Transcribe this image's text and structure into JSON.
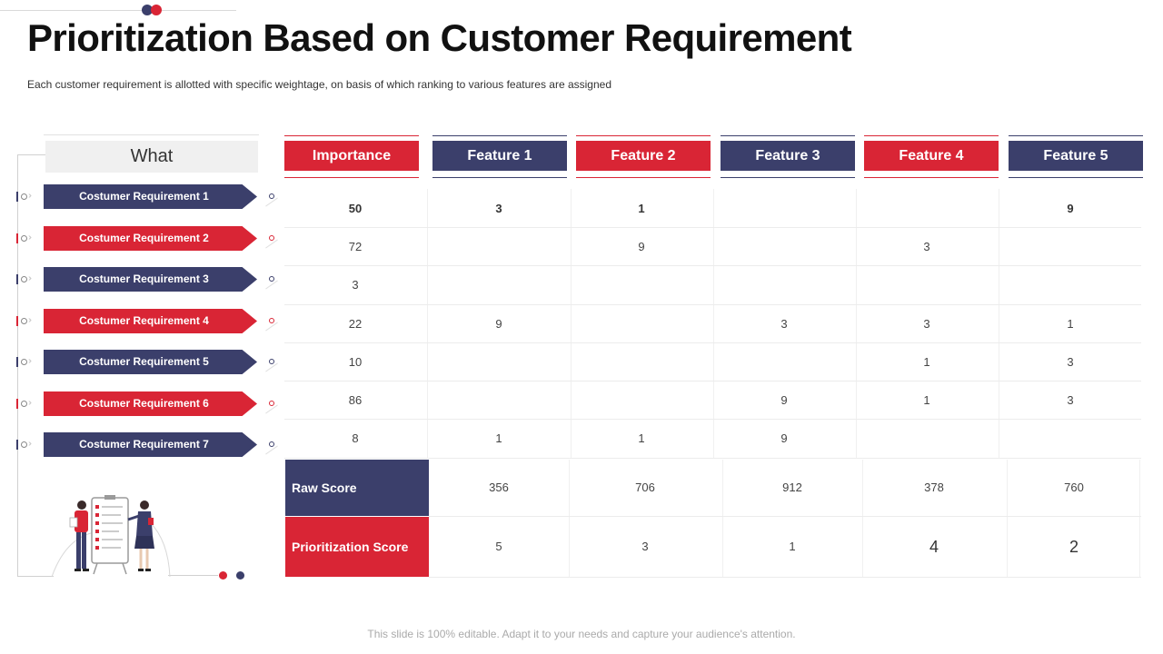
{
  "colors": {
    "red": "#d92535",
    "navy": "#3b3f6b"
  },
  "title": "Prioritization Based on Customer Requirement",
  "subtitle": "Each customer requirement  is allotted with specific weightage, on basis of which ranking to various  features are assigned",
  "what_header": "What",
  "requirements": [
    {
      "label": "Costumer Requirement 1",
      "color": "navy"
    },
    {
      "label": "Costumer Requirement 2",
      "color": "red"
    },
    {
      "label": "Costumer Requirement 3",
      "color": "navy"
    },
    {
      "label": "Costumer Requirement 4",
      "color": "red"
    },
    {
      "label": "Costumer Requirement 5",
      "color": "navy"
    },
    {
      "label": "Costumer Requirement 6",
      "color": "red"
    },
    {
      "label": "Costumer Requirement 7",
      "color": "navy"
    }
  ],
  "columns": [
    {
      "label": "Importance",
      "color": "red"
    },
    {
      "label": "Feature 1",
      "color": "navy"
    },
    {
      "label": "Feature 2",
      "color": "red"
    },
    {
      "label": "Feature 3",
      "color": "navy"
    },
    {
      "label": "Feature 4",
      "color": "red"
    },
    {
      "label": "Feature 5",
      "color": "navy"
    }
  ],
  "rows": [
    [
      "50",
      "3",
      "1",
      "",
      "",
      "9"
    ],
    [
      "72",
      "",
      "9",
      "",
      "3",
      ""
    ],
    [
      "3",
      "",
      "",
      "",
      "",
      ""
    ],
    [
      "22",
      "9",
      "",
      "3",
      "3",
      "1"
    ],
    [
      "10",
      "",
      "",
      "",
      "1",
      "3"
    ],
    [
      "86",
      "",
      "",
      "9",
      "1",
      "3"
    ],
    [
      "8",
      "1",
      "1",
      "9",
      "",
      ""
    ]
  ],
  "raw_score": {
    "label": "Raw Score",
    "values": [
      "356",
      "706",
      "912",
      "378",
      "760"
    ]
  },
  "prioritization_score": {
    "label": "Prioritization Score",
    "values": [
      "5",
      "3",
      "1",
      "4",
      "2"
    ]
  },
  "footer": "This slide is 100% editable. Adapt it to your needs and capture your audience's attention."
}
